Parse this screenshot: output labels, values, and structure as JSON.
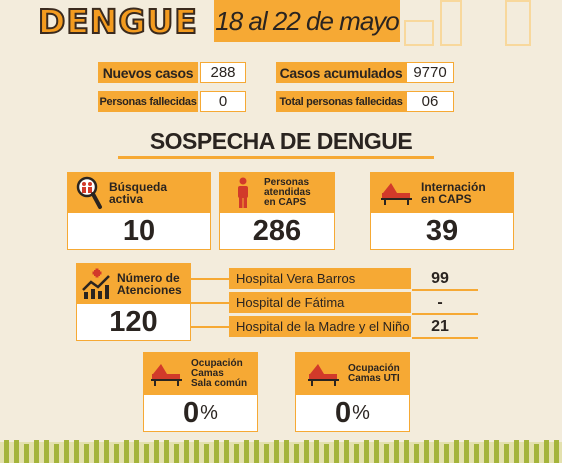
{
  "header": {
    "logo": "DENGUE",
    "date": "18 al 22 de mayo"
  },
  "stats": {
    "nuevos_casos": {
      "label": "Nuevos casos",
      "value": "288"
    },
    "casos_acumulados": {
      "label": "Casos acumulados",
      "value": "9770"
    },
    "personas_fallecidas": {
      "label": "Personas fallecidas",
      "value": "0"
    },
    "total_fallecidas": {
      "label": "Total personas fallecidas",
      "value": "06"
    }
  },
  "sospecha": {
    "title": "SOSPECHA DE DENGUE",
    "busqueda": {
      "label_1": "Búsqueda",
      "label_2": "activa",
      "value": "10",
      "icon": "magnifier-people-icon"
    },
    "atendidas": {
      "label_1": "Personas",
      "label_2": "atendidas",
      "label_3": "en CAPS",
      "value": "286",
      "icon": "person-icon"
    },
    "internacion": {
      "label_1": "Internación",
      "label_2": "en CAPS",
      "value": "39",
      "icon": "hospital-bed-icon"
    }
  },
  "atenciones": {
    "label_1": "Número de",
    "label_2": "Atenciones",
    "value": "120",
    "icon": "growth-chart-icon",
    "hospitals": [
      {
        "name": "Hospital Vera Barros",
        "value": "99"
      },
      {
        "name": "Hospital de Fátima",
        "value": "-"
      },
      {
        "name": "Hospital de la Madre y el Niño",
        "value": "21"
      }
    ]
  },
  "ocupacion": {
    "sala_comun": {
      "label_1": "Ocupación",
      "label_2": "Camas",
      "label_3": "Sala común",
      "value": "0",
      "unit": "%",
      "icon": "hospital-bed-icon"
    },
    "uti": {
      "label_1": "Ocupación",
      "label_2": "Camas UTI",
      "value": "0",
      "unit": "%",
      "icon": "hospital-bed-icon"
    }
  },
  "colors": {
    "accent": "#f6a934",
    "background": "#f3ecdc",
    "text": "#2a2420",
    "logo_orange": "#f39b1f"
  }
}
